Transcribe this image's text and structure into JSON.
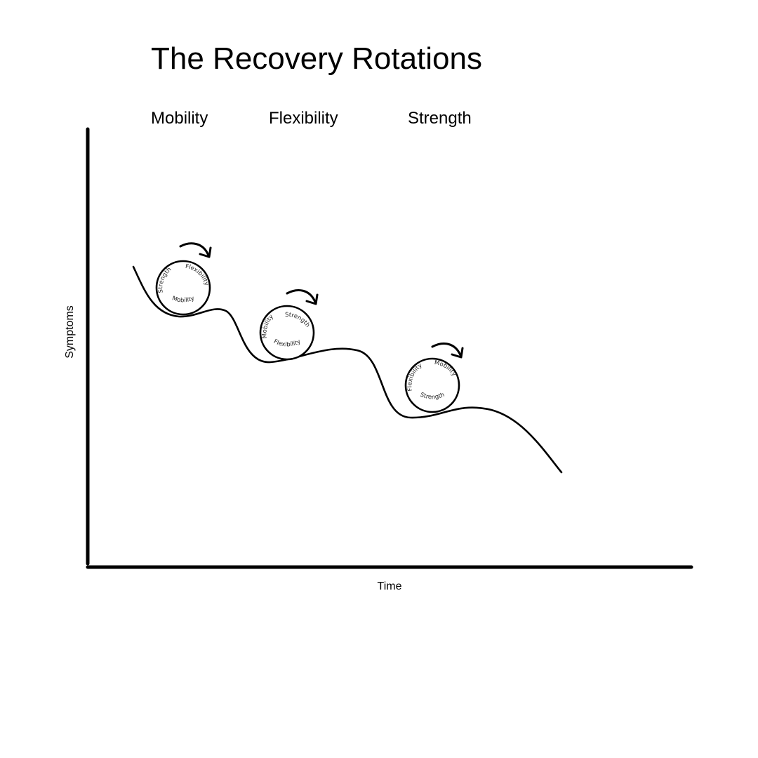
{
  "title": "The Recovery Rotations",
  "phases": [
    "Mobility",
    "Flexibility",
    "Strength"
  ],
  "axes": {
    "y_label": "Symptoms",
    "x_label": "Time"
  },
  "wheels": [
    {
      "stage": "Mobility",
      "labels": {
        "bottom": "Mobility",
        "right": "Flexibility",
        "left": "Strength"
      }
    },
    {
      "stage": "Flexibility",
      "labels": {
        "bottom": "Flexibility",
        "right": "Strength",
        "left": "Mobility"
      }
    },
    {
      "stage": "Strength",
      "labels": {
        "bottom": "Strength",
        "right": "Mobility",
        "left": "Flexibility"
      }
    }
  ]
}
